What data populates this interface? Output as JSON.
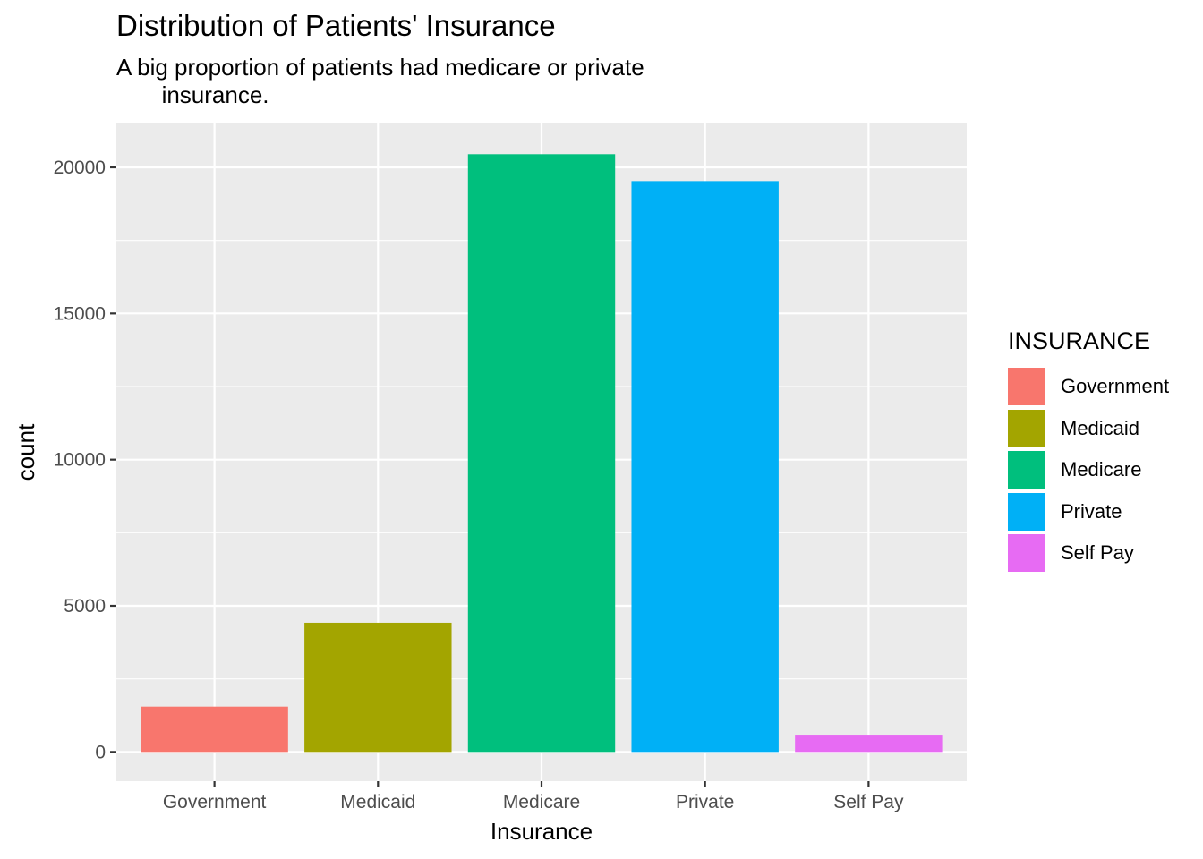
{
  "chart_data": {
    "type": "bar",
    "title": "Distribution of Patients' Insurance",
    "subtitle": "A big proportion of patients had medicare or private\n       insurance.",
    "xlabel": "Insurance",
    "ylabel": "count",
    "categories": [
      "Government",
      "Medicaid",
      "Medicare",
      "Private",
      "Self Pay"
    ],
    "values": [
      1550,
      4420,
      20450,
      19530,
      590
    ],
    "colors": [
      "#F8766D",
      "#A3A500",
      "#00BF7D",
      "#00B0F6",
      "#E76BF3"
    ],
    "yticks": [
      0,
      5000,
      10000,
      15000,
      20000
    ],
    "ylim": [
      -1000,
      21500
    ],
    "grid": true,
    "legend": {
      "title": "INSURANCE",
      "position": "right"
    }
  }
}
